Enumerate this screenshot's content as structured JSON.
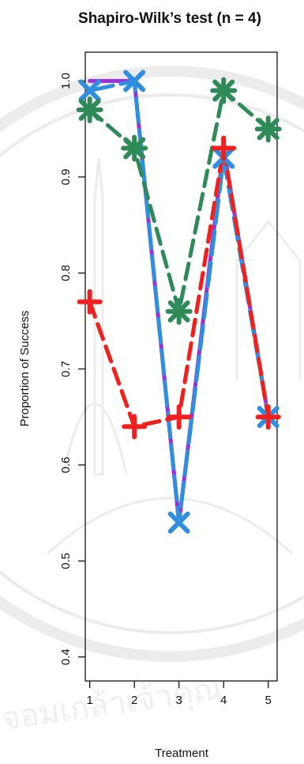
{
  "chart_data": {
    "type": "line",
    "title": "Shapiro-Wilk’s test (n = 4)",
    "xlabel": "Treatment",
    "ylabel": "Proportion of Success",
    "x": [
      1,
      2,
      3,
      4,
      5
    ],
    "xlim": [
      0.9,
      5.2
    ],
    "ylim": [
      0.375,
      1.03
    ],
    "x_ticks": [
      1,
      2,
      3,
      4,
      5
    ],
    "y_ticks": [
      0.4,
      0.5,
      0.6,
      0.7,
      0.8,
      0.9,
      1.0
    ],
    "y_tick_labels": [
      "0.4",
      "0.5",
      "0.6",
      "0.7",
      "0.8",
      "0.9",
      "1.0"
    ],
    "grid": false,
    "series": [
      {
        "values": [
          1.0,
          1.0,
          0.54,
          0.93,
          0.65
        ],
        "color": "#9b30d9",
        "marker": "none",
        "dash": "solid"
      },
      {
        "values": [
          0.99,
          1.0,
          0.54,
          0.92,
          0.65
        ],
        "color": "#2f8fde",
        "marker": "x",
        "dash": "longdash"
      },
      {
        "values": [
          0.77,
          0.64,
          0.65,
          0.93,
          0.65
        ],
        "color": "#f2a100",
        "marker": "none",
        "dash": "dash"
      },
      {
        "values": [
          0.97,
          0.93,
          0.76,
          0.99,
          0.95
        ],
        "color": "#2e8b57",
        "marker": "star",
        "dash": "dash"
      },
      {
        "values": [
          0.77,
          0.64,
          0.65,
          0.93,
          0.65
        ],
        "color": "#f02020",
        "marker": "plus",
        "dash": "dash"
      }
    ]
  },
  "watermark": {
    "seal_text": "จอมเกล้าเจ้าคุณ"
  }
}
